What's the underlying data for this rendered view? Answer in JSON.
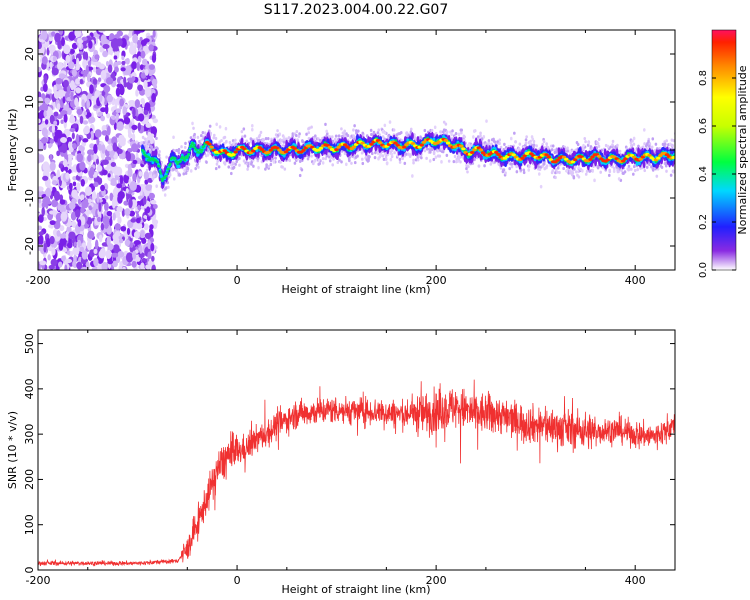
{
  "figure": {
    "title": "S117.2023.004.00.22.G07"
  },
  "chart_data": [
    {
      "type": "heatmap",
      "xlabel": "Height of straight line (km)",
      "ylabel": "Frequency (Hz)",
      "xlim": [
        -200,
        440
      ],
      "ylim": [
        -25,
        25
      ],
      "xticks": [
        -200,
        0,
        200,
        400
      ],
      "yticks": [
        -20,
        -10,
        0,
        10,
        20
      ],
      "grid": false,
      "colorbar": {
        "label": "Normalized spectral amplitude",
        "range": [
          0,
          1
        ],
        "ticks": [
          0.0,
          0.2,
          0.4,
          0.6,
          0.8
        ],
        "tick_labels": [
          "0.0",
          "0.2",
          "0.4",
          "0.6",
          "0.8"
        ]
      },
      "noise_region_end_km": -82,
      "ridge": {
        "x": [
          -100,
          -90,
          -80,
          -75,
          -70,
          -65,
          -60,
          -55,
          -50,
          -45,
          -40,
          -30,
          -20,
          -10,
          0,
          20,
          40,
          60,
          80,
          100,
          120,
          140,
          160,
          180,
          200,
          210,
          220,
          230,
          240,
          260,
          280,
          300,
          320,
          340,
          360,
          380,
          400,
          420,
          440
        ],
        "y": [
          0,
          -1,
          -3,
          -6,
          -4,
          -2,
          -3,
          -1,
          -2,
          1,
          0,
          1,
          0,
          -1,
          0,
          0,
          0,
          0,
          0.5,
          0.5,
          1,
          1.5,
          1,
          1,
          2,
          1.5,
          1,
          -0.5,
          0,
          -1,
          -1.5,
          -1,
          -2,
          -2,
          -1.5,
          -2,
          -1.5,
          -1.5,
          -1
        ]
      }
    },
    {
      "type": "line",
      "xlabel": "Height of straight line (km)",
      "ylabel": "SNR (10 * v/v)",
      "xlim": [
        -200,
        440
      ],
      "ylim": [
        0,
        530
      ],
      "xticks": [
        -200,
        0,
        200,
        400
      ],
      "yticks": [
        0,
        100,
        200,
        300,
        400,
        500
      ],
      "grid": false,
      "series": [
        {
          "color": "#f03030",
          "x": [
            -200,
            -150,
            -100,
            -60,
            -50,
            -40,
            -30,
            -20,
            -10,
            0,
            10,
            20,
            30,
            40,
            60,
            80,
            100,
            120,
            140,
            160,
            180,
            200,
            220,
            240,
            260,
            280,
            300,
            320,
            340,
            360,
            380,
            400,
            420,
            440
          ],
          "y": [
            15,
            15,
            15,
            20,
            45,
            100,
            160,
            220,
            250,
            260,
            270,
            290,
            300,
            320,
            345,
            350,
            355,
            350,
            350,
            345,
            345,
            350,
            360,
            345,
            345,
            330,
            320,
            315,
            310,
            305,
            310,
            300,
            295,
            320
          ]
        }
      ]
    }
  ]
}
